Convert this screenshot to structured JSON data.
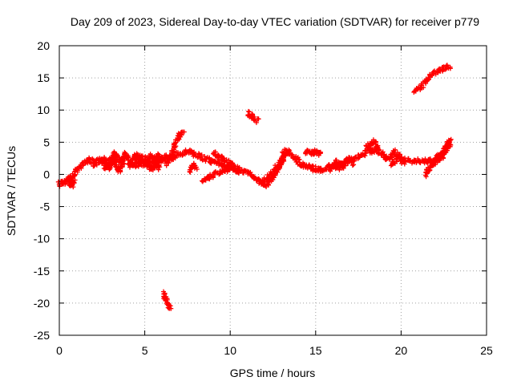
{
  "chart_data": {
    "type": "scatter",
    "title": "Day 209 of 2023, Sidereal Day-to-day VTEC variation (SDTVAR) for receiver p779",
    "xlabel": "GPS time / hours",
    "ylabel": "SDTVAR / TECUs",
    "xlim": [
      0,
      25
    ],
    "ylim": [
      -25,
      20
    ],
    "xticks": [
      0,
      5,
      10,
      15,
      20,
      25
    ],
    "yticks": [
      -25,
      -20,
      -15,
      -10,
      -5,
      0,
      5,
      10,
      15,
      20
    ],
    "grid": true,
    "legend": "none",
    "series": [
      {
        "name": "SDTVAR",
        "color": "#ff0000",
        "marker": "plus",
        "segments": [
          [
            [
              0.0,
              -1.5
            ],
            [
              0.3,
              -1.2
            ],
            [
              0.6,
              -0.8
            ],
            [
              0.9,
              0.2
            ],
            [
              1.2,
              1.2
            ],
            [
              1.5,
              1.8
            ],
            [
              1.8,
              2.3
            ],
            [
              2.1,
              1.5
            ],
            [
              2.4,
              2.6
            ],
            [
              2.7,
              1.2
            ],
            [
              3.0,
              2.5
            ],
            [
              3.3,
              3.2
            ],
            [
              3.6,
              1.8
            ],
            [
              3.9,
              3.4
            ],
            [
              4.2,
              1.2
            ],
            [
              4.5,
              3.3
            ],
            [
              4.8,
              1.5
            ],
            [
              5.1,
              2.5
            ],
            [
              5.4,
              0.8
            ],
            [
              5.7,
              3.0
            ],
            [
              6.0,
              2.2
            ],
            [
              6.3,
              2.8
            ],
            [
              6.6,
              2.4
            ],
            [
              7.0,
              3.2
            ],
            [
              7.5,
              3.6
            ],
            [
              8.0,
              3.0
            ],
            [
              8.5,
              2.5
            ],
            [
              9.0,
              2.0
            ],
            [
              9.5,
              1.5
            ],
            [
              10.0,
              1.0
            ],
            [
              10.5,
              0.6
            ],
            [
              11.0,
              0.2
            ],
            [
              11.5,
              -0.6
            ],
            [
              11.8,
              -1.3
            ],
            [
              12.2,
              -0.5
            ],
            [
              12.6,
              0.8
            ],
            [
              13.0,
              2.0
            ],
            [
              13.4,
              3.5
            ],
            [
              13.8,
              2.5
            ],
            [
              14.2,
              1.5
            ],
            [
              14.6,
              1.2
            ],
            [
              15.0,
              0.8
            ],
            [
              15.3,
              0.6
            ],
            [
              15.8,
              1.2
            ],
            [
              16.2,
              1.2
            ],
            [
              16.6,
              1.8
            ],
            [
              17.0,
              2.3
            ],
            [
              17.4,
              2.5
            ],
            [
              17.8,
              3.2
            ],
            [
              18.1,
              4.0
            ],
            [
              18.4,
              5.2
            ],
            [
              18.7,
              3.6
            ],
            [
              19.0,
              2.8
            ],
            [
              19.3,
              2.2
            ],
            [
              19.6,
              3.5
            ],
            [
              19.9,
              2.8
            ],
            [
              20.2,
              2.2
            ],
            [
              20.6,
              2.0
            ],
            [
              21.0,
              2.2
            ],
            [
              21.5,
              2.0
            ],
            [
              22.0,
              2.4
            ],
            [
              22.4,
              3.2
            ],
            [
              22.7,
              4.2
            ],
            [
              22.9,
              5.0
            ]
          ],
          [
            [
              0.5,
              -0.5
            ],
            [
              0.7,
              -1.8
            ],
            [
              0.9,
              -1.0
            ]
          ],
          [
            [
              2.6,
              2.8
            ],
            [
              2.9,
              0.8
            ],
            [
              3.2,
              2.6
            ],
            [
              3.5,
              0.6
            ],
            [
              3.8,
              2.4
            ]
          ],
          [
            [
              4.5,
              1.0
            ],
            [
              4.8,
              2.8
            ],
            [
              5.1,
              1.4
            ],
            [
              5.4,
              3.0
            ],
            [
              5.7,
              0.8
            ],
            [
              6.0,
              2.6
            ],
            [
              6.4,
              1.6
            ]
          ],
          [
            [
              6.5,
              2.4
            ],
            [
              6.8,
              4.6
            ],
            [
              7.0,
              6.0
            ],
            [
              7.3,
              6.3
            ]
          ],
          [
            [
              7.6,
              0.6
            ],
            [
              7.8,
              1.4
            ],
            [
              8.0,
              1.0
            ]
          ],
          [
            [
              8.4,
              -1.2
            ],
            [
              8.8,
              -0.5
            ],
            [
              9.2,
              0.2
            ],
            [
              9.6,
              0.8
            ],
            [
              10.0,
              0.6
            ]
          ],
          [
            [
              9.0,
              3.4
            ],
            [
              9.4,
              2.6
            ],
            [
              9.8,
              2.0
            ],
            [
              10.2,
              1.2
            ],
            [
              10.6,
              0.6
            ]
          ],
          [
            [
              11.0,
              9.5
            ],
            [
              11.3,
              9.0
            ],
            [
              11.6,
              8.3
            ]
          ],
          [
            [
              12.0,
              -1.8
            ],
            [
              12.3,
              -1.0
            ],
            [
              12.6,
              0.2
            ],
            [
              12.9,
              1.4
            ],
            [
              13.1,
              3.2
            ],
            [
              13.3,
              3.9
            ]
          ],
          [
            [
              14.4,
              3.6
            ],
            [
              14.7,
              3.4
            ],
            [
              15.0,
              3.5
            ],
            [
              15.3,
              3.2
            ]
          ],
          [
            [
              15.8,
              0.8
            ],
            [
              16.2,
              2.0
            ],
            [
              16.5,
              1.0
            ],
            [
              16.9,
              2.4
            ],
            [
              17.2,
              1.6
            ]
          ],
          [
            [
              18.0,
              4.6
            ],
            [
              18.3,
              3.4
            ],
            [
              18.6,
              4.4
            ]
          ],
          [
            [
              19.4,
              1.6
            ],
            [
              19.8,
              2.4
            ],
            [
              20.2,
              1.8
            ]
          ],
          [
            [
              21.4,
              0.0
            ],
            [
              21.7,
              1.0
            ],
            [
              22.0,
              2.0
            ],
            [
              22.3,
              2.6
            ],
            [
              22.5,
              3.2
            ],
            [
              22.7,
              4.5
            ],
            [
              22.9,
              5.4
            ]
          ],
          [
            [
              20.8,
              12.8
            ],
            [
              21.2,
              13.8
            ],
            [
              21.6,
              15.0
            ],
            [
              22.0,
              15.8
            ],
            [
              22.4,
              16.4
            ],
            [
              22.9,
              16.8
            ]
          ],
          [
            [
              6.1,
              -18.5
            ],
            [
              6.3,
              -19.8
            ],
            [
              6.5,
              -21.0
            ]
          ]
        ]
      }
    ]
  }
}
